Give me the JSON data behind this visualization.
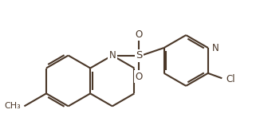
{
  "bond_color": "#4a3728",
  "background": "#ffffff",
  "line_width": 1.5,
  "font_size_atom": 8.5,
  "figsize": [
    3.26,
    1.72
  ],
  "dpi": 100,
  "xlim": [
    0,
    10
  ],
  "ylim": [
    0,
    5.27
  ],
  "bl": 1.0
}
